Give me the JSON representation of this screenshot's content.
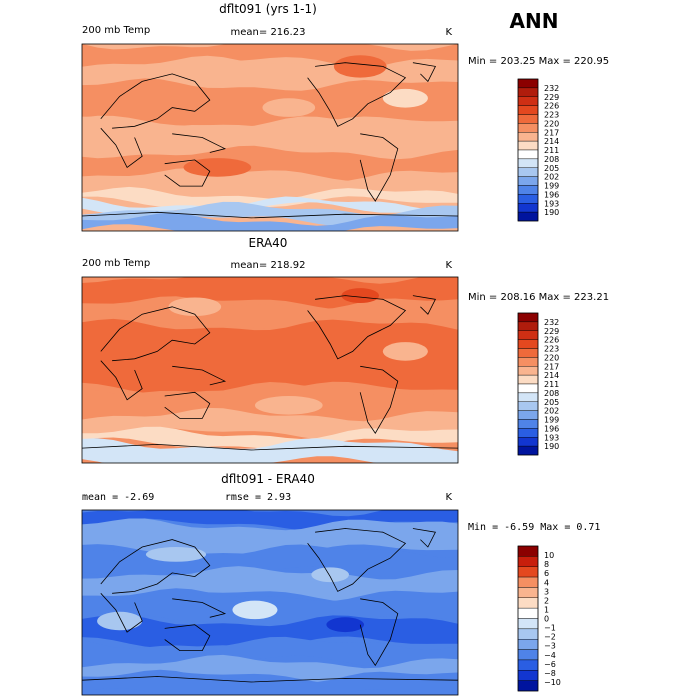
{
  "season": "ANN",
  "panels": [
    {
      "title": "dflt091 (yrs 1-1)",
      "left": "200 mb Temp",
      "mid": "mean= 216.23",
      "units": "K",
      "stats": "Min = 203.25 Max = 220.95",
      "field": "model",
      "levels": [
        "232",
        "229",
        "226",
        "223",
        "220",
        "217",
        "214",
        "211",
        "208",
        "205",
        "202",
        "199",
        "196",
        "193",
        "190"
      ]
    },
    {
      "title": "ERA40",
      "left": "200 mb Temp",
      "mid": "mean= 218.92",
      "units": "K",
      "stats": "Min = 208.16 Max = 223.21",
      "field": "obs",
      "levels": [
        "232",
        "229",
        "226",
        "223",
        "220",
        "217",
        "214",
        "211",
        "208",
        "205",
        "202",
        "199",
        "196",
        "193",
        "190"
      ]
    },
    {
      "title": "dflt091 - ERA40",
      "left": "mean =   -2.69",
      "mid": "rmse =   2.93",
      "units": "K",
      "stats": "Min =  -6.59 Max =   0.71",
      "field": "diff",
      "levels": [
        "10",
        "8",
        "6",
        "4",
        "3",
        "2",
        "1",
        "0",
        "−1",
        "−2",
        "−3",
        "−4",
        "−6",
        "−8",
        "−10"
      ]
    }
  ],
  "colors": {
    "scale": [
      "#8b0000",
      "#b01c0c",
      "#cf2f14",
      "#e4481f",
      "#ef6a3b",
      "#f58f62",
      "#f9b48f",
      "#fcdcc4",
      "#ffffff",
      "#d3e5f7",
      "#a8c7f0",
      "#7ba6ec",
      "#4f83e8",
      "#2a5ee3",
      "#1236d0",
      "#00149e"
    ],
    "diffScale": [
      "#8b0000",
      "#c81e0c",
      "#e4481f",
      "#f58f62",
      "#f9b48f",
      "#fcdcc4",
      "#ffffff",
      "#d3e5f7",
      "#a8c7f0",
      "#7ba6ec",
      "#4f83e8",
      "#2a5ee3",
      "#1236d0",
      "#00149e"
    ]
  }
}
